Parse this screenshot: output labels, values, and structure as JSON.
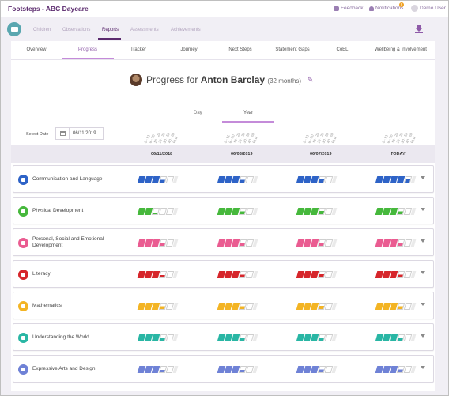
{
  "app": {
    "title": "Footsteps - ABC Daycare"
  },
  "topbar": {
    "feedback": "Feedback",
    "notifications": "Notifications",
    "notification_count": "8",
    "user": "Demo User"
  },
  "nav": {
    "tabs": [
      "Children",
      "Observations",
      "Reports",
      "Assessments",
      "Achievements"
    ],
    "active": "Reports"
  },
  "subtabs": {
    "items": [
      "Overview",
      "Progress",
      "Tracker",
      "Journey",
      "Next Steps",
      "Statement Gaps",
      "CoEL",
      "Wellbeing & Involvement"
    ],
    "active": "Progress"
  },
  "progress": {
    "title_prefix": "Progress for",
    "child_name": "Anton Barclay",
    "age": "(32 months)"
  },
  "range_tabs": {
    "items": [
      "Day",
      "Year"
    ],
    "active": "Year"
  },
  "date_select": {
    "label": "Select Date",
    "value": "06/11/2019"
  },
  "age_ticks": [
    "0 - 11",
    "8 - 20",
    "16 - 26",
    "22 - 36",
    "30 - 50",
    "40 - 60",
    "ELG"
  ],
  "columns": [
    "06/11/2018",
    "06/03/2019",
    "06/07/2019",
    "TODAY"
  ],
  "areas": [
    {
      "label": "Communication and Language",
      "color": "#2e63c7",
      "icon": "speech-bubble-icon",
      "levels": [
        3.5,
        3.5,
        3.6,
        4.6
      ]
    },
    {
      "label": "Physical Development",
      "color": "#46b83c",
      "icon": "person-icon",
      "levels": [
        2.3,
        3.5,
        3.6,
        3.5
      ]
    },
    {
      "label": "Personal, Social and Emotional Development",
      "color": "#ea5c91",
      "icon": "heart-icon",
      "levels": [
        3.5,
        3.5,
        3.6,
        3.5
      ]
    },
    {
      "label": "Literacy",
      "color": "#d6262b",
      "icon": "book-icon",
      "levels": [
        3.4,
        3.5,
        3.6,
        3.5
      ]
    },
    {
      "label": "Mathematics",
      "color": "#f3b424",
      "icon": "calculator-icon",
      "levels": [
        3.5,
        3.5,
        3.6,
        3.5
      ]
    },
    {
      "label": "Understanding the World",
      "color": "#29b6a4",
      "icon": "globe-icon",
      "levels": [
        3.4,
        3.5,
        3.5,
        3.5
      ]
    },
    {
      "label": "Expressive Arts and Design",
      "color": "#6f82d6",
      "icon": "brush-icon",
      "levels": [
        3.4,
        3.4,
        3.5,
        3.5
      ]
    }
  ]
}
